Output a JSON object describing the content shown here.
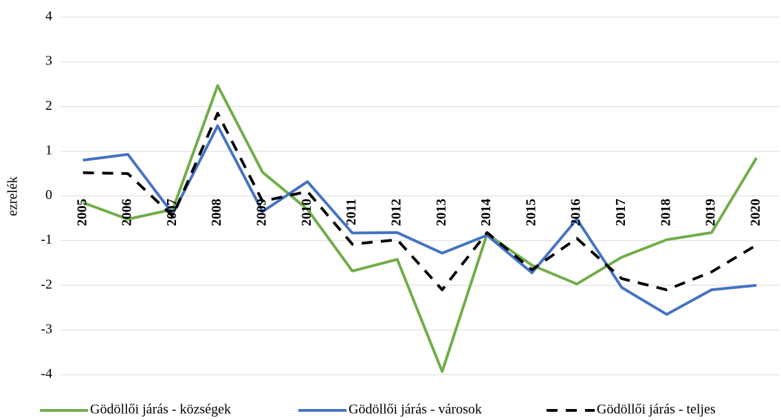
{
  "chart_data": {
    "type": "line",
    "y_label": "ezrelék",
    "categories": [
      "2005",
      "2006",
      "2007",
      "2008",
      "2009",
      "2010",
      "2011",
      "2012",
      "2013",
      "2014",
      "2015",
      "2016",
      "2017",
      "2018",
      "2019",
      "2020"
    ],
    "series": [
      {
        "name": "Gödöllői járás - községek",
        "color": "#70ad47",
        "dash": "solid",
        "values": [
          -0.15,
          -0.52,
          -0.3,
          2.47,
          0.53,
          -0.3,
          -1.68,
          -1.42,
          -3.93,
          -0.85,
          -1.55,
          -1.97,
          -1.37,
          -0.98,
          -0.82,
          0.85
        ]
      },
      {
        "name": "Gödöllői járás - városok",
        "color": "#4472c4",
        "dash": "solid",
        "values": [
          0.8,
          0.93,
          -0.4,
          1.57,
          -0.35,
          0.32,
          -0.83,
          -0.82,
          -1.28,
          -0.88,
          -1.72,
          -0.52,
          -2.05,
          -2.65,
          -2.1,
          -2.0
        ]
      },
      {
        "name": "Gödöllői járás - teljes",
        "color": "#000000",
        "dash": "dashed",
        "values": [
          0.52,
          0.5,
          -0.45,
          1.85,
          -0.12,
          0.1,
          -1.08,
          -0.98,
          -2.1,
          -0.82,
          -1.65,
          -0.95,
          -1.85,
          -2.1,
          -1.7,
          -1.1
        ]
      }
    ],
    "ylim": [
      -4,
      4
    ],
    "yticks": [
      -4,
      -3,
      -2,
      -1,
      0,
      1,
      2,
      3,
      4
    ],
    "grid": true,
    "legend": "bottom"
  }
}
